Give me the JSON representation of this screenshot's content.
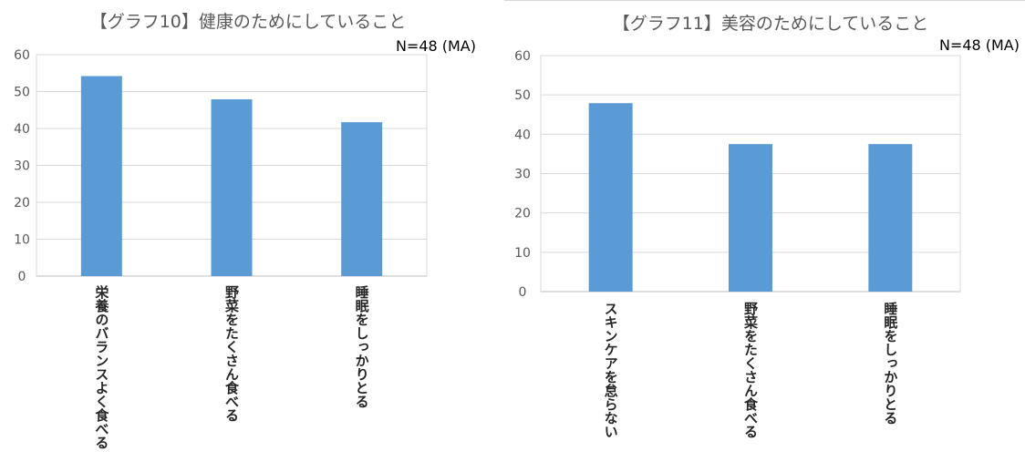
{
  "charts": [
    {
      "note": "N=48 (MA)",
      "chart_data": {
        "type": "bar",
        "title": "【グラフ10】健康のためにしていること",
        "categories": [
          "栄養のバランスよく食べる",
          "野菜をたくさん食べる",
          "睡眠をしっかりとる"
        ],
        "values": [
          54.2,
          47.9,
          41.7
        ],
        "yticks": [
          "0",
          "10",
          "20",
          "30",
          "40",
          "50",
          "60"
        ],
        "ylim": [
          0,
          60
        ],
        "xlabel": "",
        "ylabel": "",
        "grid": true,
        "bar_color": "#5b9bd5"
      }
    },
    {
      "note": "N=48 (MA)",
      "chart_data": {
        "type": "bar",
        "title": "【グラフ11】美容のためにしていること",
        "categories": [
          "スキンケアを怠らない",
          "野菜をたくさん食べる",
          "睡眠をしっかりとる"
        ],
        "values": [
          47.9,
          37.5,
          37.5
        ],
        "yticks": [
          "0",
          "10",
          "20",
          "30",
          "40",
          "50",
          "60"
        ],
        "ylim": [
          0,
          60
        ],
        "xlabel": "",
        "ylabel": "",
        "grid": true,
        "bar_color": "#5b9bd5"
      }
    }
  ]
}
